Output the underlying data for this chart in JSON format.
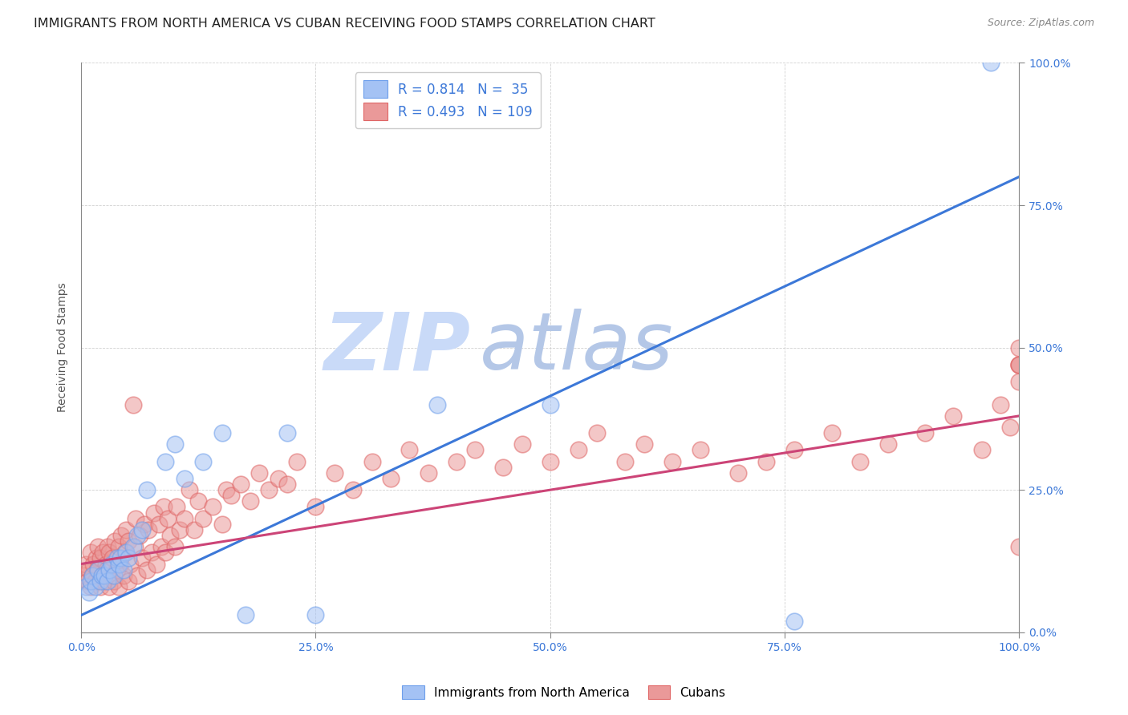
{
  "title": "IMMIGRANTS FROM NORTH AMERICA VS CUBAN RECEIVING FOOD STAMPS CORRELATION CHART",
  "source": "Source: ZipAtlas.com",
  "ylabel": "Receiving Food Stamps",
  "xlim": [
    0,
    1
  ],
  "ylim": [
    0,
    1
  ],
  "xticks": [
    0.0,
    0.25,
    0.5,
    0.75,
    1.0
  ],
  "yticks": [
    0.0,
    0.25,
    0.5,
    0.75,
    1.0
  ],
  "xticklabels": [
    "0.0%",
    "25.0%",
    "50.0%",
    "75.0%",
    "100.0%"
  ],
  "yticklabels": [
    "0.0%",
    "25.0%",
    "50.0%",
    "75.0%",
    "100.0%"
  ],
  "blue_R": 0.814,
  "blue_N": 35,
  "pink_R": 0.493,
  "pink_N": 109,
  "blue_color": "#a4c2f4",
  "pink_color": "#ea9999",
  "blue_edge_color": "#6d9eeb",
  "pink_edge_color": "#e06666",
  "blue_line_color": "#3c78d8",
  "pink_line_color": "#cc4477",
  "legend_text_color": "#3c78d8",
  "watermark_zip_color": "#c9daf8",
  "watermark_atlas_color": "#b4c7e7",
  "blue_line_y_start": 0.03,
  "blue_line_y_end": 0.8,
  "pink_line_y_start": 0.12,
  "pink_line_y_end": 0.38,
  "background_color": "#ffffff",
  "grid_color": "#cccccc",
  "title_fontsize": 11.5,
  "axis_label_fontsize": 10,
  "tick_label_fontsize": 10,
  "right_tick_color": "#3c78d8",
  "bottom_tick_color": "#3c78d8",
  "scatter_size": 220,
  "scatter_alpha": 0.55,
  "scatter_linewidth": 1.2,
  "blue_scatter_x": [
    0.005,
    0.008,
    0.01,
    0.012,
    0.015,
    0.018,
    0.02,
    0.022,
    0.025,
    0.028,
    0.03,
    0.032,
    0.035,
    0.038,
    0.04,
    0.042,
    0.045,
    0.048,
    0.05,
    0.055,
    0.06,
    0.065,
    0.07,
    0.09,
    0.1,
    0.11,
    0.13,
    0.15,
    0.175,
    0.22,
    0.25,
    0.38,
    0.5,
    0.76,
    0.97
  ],
  "blue_scatter_y": [
    0.08,
    0.07,
    0.09,
    0.1,
    0.08,
    0.11,
    0.09,
    0.1,
    0.1,
    0.09,
    0.11,
    0.12,
    0.1,
    0.13,
    0.12,
    0.13,
    0.11,
    0.14,
    0.13,
    0.15,
    0.17,
    0.18,
    0.25,
    0.3,
    0.33,
    0.27,
    0.3,
    0.35,
    0.03,
    0.35,
    0.03,
    0.4,
    0.4,
    0.02,
    1.0
  ],
  "pink_scatter_x": [
    0.003,
    0.005,
    0.007,
    0.008,
    0.01,
    0.01,
    0.012,
    0.013,
    0.015,
    0.016,
    0.017,
    0.018,
    0.02,
    0.02,
    0.022,
    0.023,
    0.025,
    0.026,
    0.027,
    0.028,
    0.03,
    0.03,
    0.032,
    0.033,
    0.035,
    0.036,
    0.038,
    0.04,
    0.04,
    0.042,
    0.043,
    0.045,
    0.047,
    0.048,
    0.05,
    0.05,
    0.052,
    0.055,
    0.057,
    0.058,
    0.06,
    0.062,
    0.065,
    0.067,
    0.07,
    0.072,
    0.075,
    0.078,
    0.08,
    0.083,
    0.085,
    0.088,
    0.09,
    0.092,
    0.095,
    0.1,
    0.102,
    0.105,
    0.11,
    0.115,
    0.12,
    0.125,
    0.13,
    0.14,
    0.15,
    0.155,
    0.16,
    0.17,
    0.18,
    0.19,
    0.2,
    0.21,
    0.22,
    0.23,
    0.25,
    0.27,
    0.29,
    0.31,
    0.33,
    0.35,
    0.37,
    0.4,
    0.42,
    0.45,
    0.47,
    0.5,
    0.53,
    0.55,
    0.58,
    0.6,
    0.63,
    0.66,
    0.7,
    0.73,
    0.76,
    0.8,
    0.83,
    0.86,
    0.9,
    0.93,
    0.96,
    0.98,
    0.99,
    1.0,
    1.0,
    1.0,
    1.0,
    1.0,
    1.0
  ],
  "pink_scatter_y": [
    0.1,
    0.12,
    0.09,
    0.11,
    0.08,
    0.14,
    0.1,
    0.12,
    0.09,
    0.13,
    0.11,
    0.15,
    0.08,
    0.13,
    0.1,
    0.14,
    0.09,
    0.12,
    0.11,
    0.15,
    0.08,
    0.14,
    0.1,
    0.13,
    0.09,
    0.16,
    0.11,
    0.08,
    0.15,
    0.12,
    0.17,
    0.1,
    0.14,
    0.18,
    0.09,
    0.16,
    0.12,
    0.4,
    0.15,
    0.2,
    0.1,
    0.17,
    0.13,
    0.19,
    0.11,
    0.18,
    0.14,
    0.21,
    0.12,
    0.19,
    0.15,
    0.22,
    0.14,
    0.2,
    0.17,
    0.15,
    0.22,
    0.18,
    0.2,
    0.25,
    0.18,
    0.23,
    0.2,
    0.22,
    0.19,
    0.25,
    0.24,
    0.26,
    0.23,
    0.28,
    0.25,
    0.27,
    0.26,
    0.3,
    0.22,
    0.28,
    0.25,
    0.3,
    0.27,
    0.32,
    0.28,
    0.3,
    0.32,
    0.29,
    0.33,
    0.3,
    0.32,
    0.35,
    0.3,
    0.33,
    0.3,
    0.32,
    0.28,
    0.3,
    0.32,
    0.35,
    0.3,
    0.33,
    0.35,
    0.38,
    0.32,
    0.4,
    0.36,
    0.47,
    0.44,
    0.15,
    0.47,
    0.5,
    0.47
  ]
}
